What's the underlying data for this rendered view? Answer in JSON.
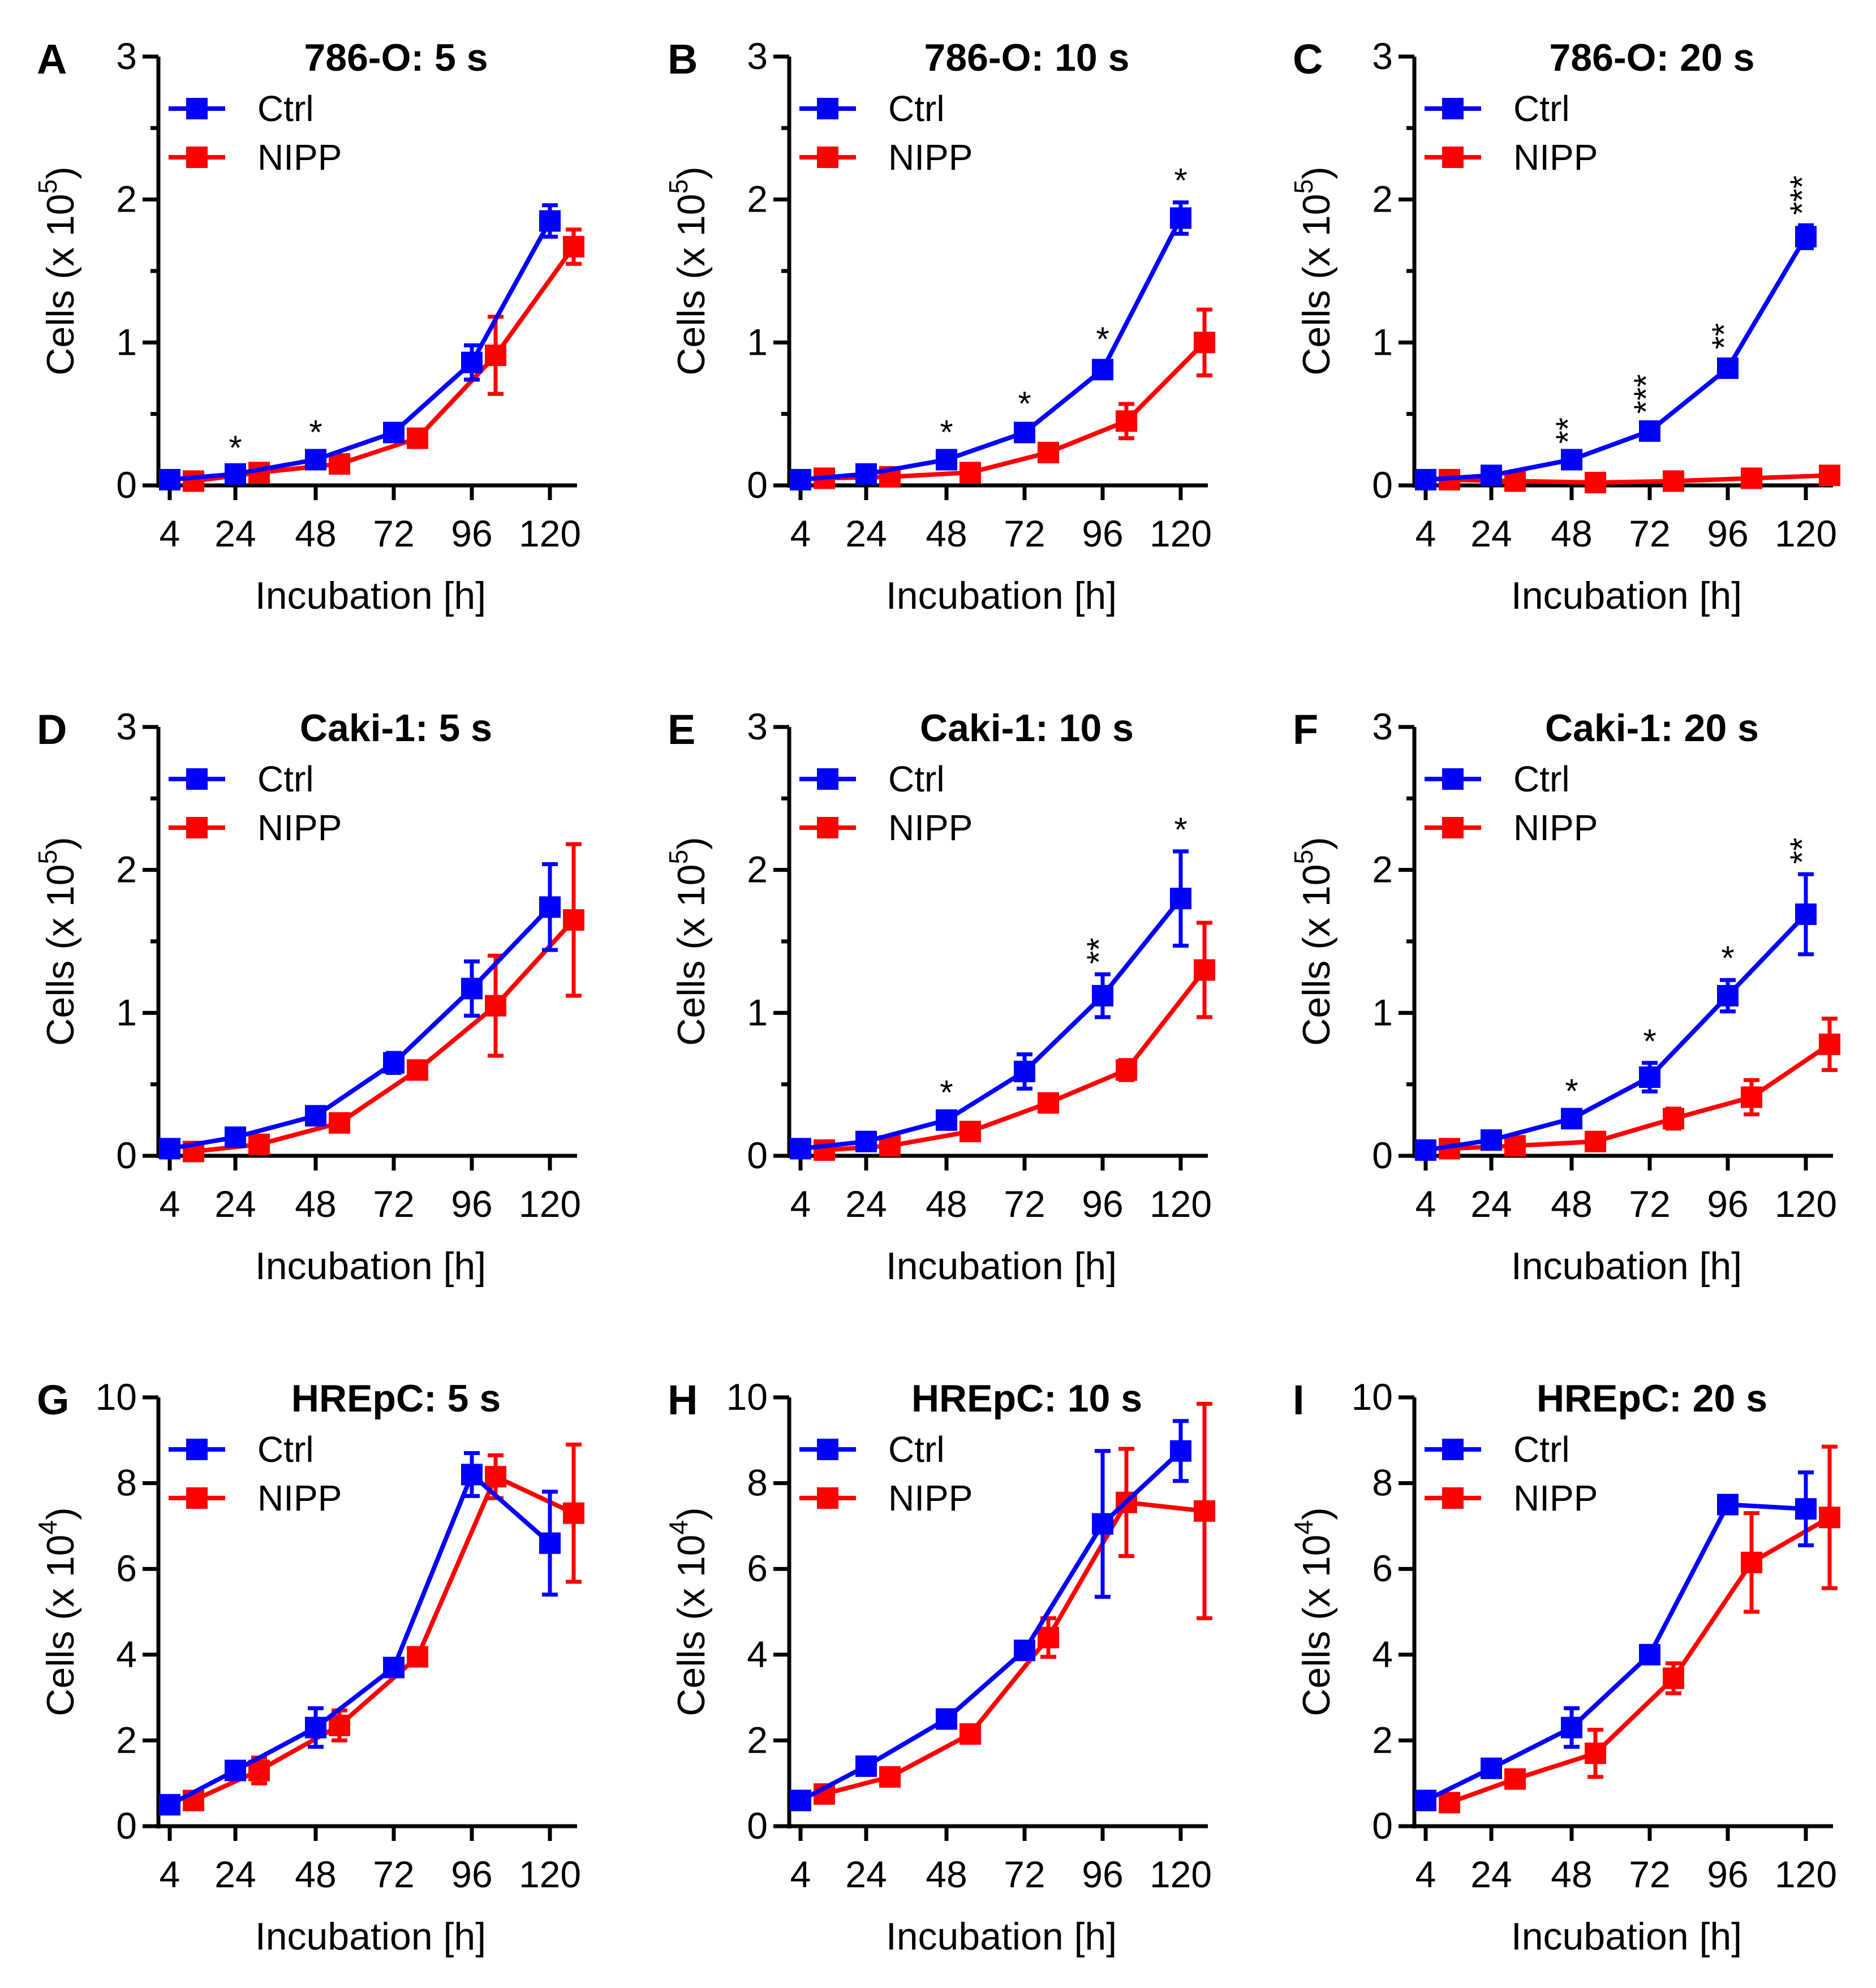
{
  "figure": {
    "xlabel": "Incubation [h]",
    "legend": [
      "Ctrl",
      "NIPP"
    ],
    "colors": {
      "Ctrl": "#0000ff",
      "NIPP": "#ff0000",
      "axis": "#000000"
    }
  },
  "chart_data": [
    {
      "type": "line",
      "panel": "A",
      "title": "786-O: 5 s",
      "xlabel": "Incubation [h]",
      "ylabel": "Cells (x 10",
      "ylabel_exp": "5",
      "ylabel_end": ")",
      "categories": [
        "4",
        "24",
        "48",
        "72",
        "96",
        "120"
      ],
      "ylim": [
        0,
        3
      ],
      "yticks": [
        "0",
        "1",
        "2",
        "3"
      ],
      "series": [
        {
          "name": "Ctrl",
          "values": [
            0.04,
            0.08,
            0.18,
            0.37,
            0.86,
            1.85
          ],
          "errors": [
            0.02,
            0.03,
            0.04,
            0.05,
            0.12,
            0.11
          ]
        },
        {
          "name": "NIPP",
          "values": [
            0.03,
            0.09,
            0.15,
            0.33,
            0.91,
            1.67
          ],
          "errors": [
            0.02,
            0.03,
            0.03,
            0.05,
            0.27,
            0.12
          ]
        }
      ],
      "annotations": [
        "",
        "*",
        "*",
        "",
        "",
        ""
      ]
    },
    {
      "type": "line",
      "panel": "B",
      "title": "786-O: 10 s",
      "xlabel": "Incubation [h]",
      "ylabel": "Cells (x 10",
      "ylabel_exp": "5",
      "ylabel_end": ")",
      "categories": [
        "4",
        "24",
        "48",
        "72",
        "96",
        "120"
      ],
      "ylim": [
        0,
        3
      ],
      "yticks": [
        "0",
        "1",
        "2",
        "3"
      ],
      "series": [
        {
          "name": "Ctrl",
          "values": [
            0.04,
            0.08,
            0.18,
            0.37,
            0.81,
            1.87
          ],
          "errors": [
            0.02,
            0.03,
            0.04,
            0.05,
            0.06,
            0.11
          ]
        },
        {
          "name": "NIPP",
          "values": [
            0.05,
            0.06,
            0.09,
            0.23,
            0.45,
            1.0
          ],
          "errors": [
            0.04,
            0.03,
            0.04,
            0.05,
            0.12,
            0.23
          ]
        }
      ],
      "annotations": [
        "",
        "",
        "*",
        "*",
        "*",
        "*"
      ]
    },
    {
      "type": "line",
      "panel": "C",
      "title": "786-O: 20 s",
      "xlabel": "Incubation [h]",
      "ylabel": "Cells (x 10",
      "ylabel_exp": "5",
      "ylabel_end": ")",
      "categories": [
        "4",
        "24",
        "48",
        "72",
        "96",
        "120"
      ],
      "ylim": [
        0,
        3
      ],
      "yticks": [
        "0",
        "1",
        "2",
        "3"
      ],
      "series": [
        {
          "name": "Ctrl",
          "values": [
            0.04,
            0.07,
            0.18,
            0.38,
            0.82,
            1.74
          ],
          "errors": [
            0.02,
            0.03,
            0.04,
            0.05,
            0.06,
            0.08
          ]
        },
        {
          "name": "NIPP",
          "values": [
            0.04,
            0.03,
            0.02,
            0.03,
            0.05,
            0.07
          ],
          "errors": [
            0.02,
            0.02,
            0.02,
            0.02,
            0.02,
            0.03
          ]
        }
      ],
      "annotations": [
        "",
        "",
        "**",
        "***",
        "**",
        "***"
      ]
    },
    {
      "type": "line",
      "panel": "D",
      "title": "Caki-1: 5 s",
      "xlabel": "Incubation [h]",
      "ylabel": "Cells (x 10",
      "ylabel_exp": "5",
      "ylabel_end": ")",
      "categories": [
        "4",
        "24",
        "48",
        "72",
        "96",
        "120"
      ],
      "ylim": [
        0,
        3
      ],
      "yticks": [
        "0",
        "1",
        "2",
        "3"
      ],
      "series": [
        {
          "name": "Ctrl",
          "values": [
            0.05,
            0.13,
            0.28,
            0.65,
            1.17,
            1.74
          ],
          "errors": [
            0.02,
            0.03,
            0.04,
            0.07,
            0.19,
            0.3
          ]
        },
        {
          "name": "NIPP",
          "values": [
            0.03,
            0.08,
            0.23,
            0.6,
            1.05,
            1.65
          ],
          "errors": [
            0.02,
            0.03,
            0.04,
            0.05,
            0.35,
            0.53
          ]
        }
      ],
      "annotations": [
        "",
        "",
        "",
        "",
        "",
        ""
      ]
    },
    {
      "type": "line",
      "panel": "E",
      "title": "Caki-1: 10 s",
      "xlabel": "Incubation [h]",
      "ylabel": "Cells (x 10",
      "ylabel_exp": "5",
      "ylabel_end": ")",
      "categories": [
        "4",
        "24",
        "48",
        "72",
        "96",
        "120"
      ],
      "ylim": [
        0,
        3
      ],
      "yticks": [
        "0",
        "1",
        "2",
        "3"
      ],
      "series": [
        {
          "name": "Ctrl",
          "values": [
            0.05,
            0.1,
            0.25,
            0.59,
            1.12,
            1.8
          ],
          "errors": [
            0.02,
            0.03,
            0.04,
            0.12,
            0.15,
            0.33
          ]
        },
        {
          "name": "NIPP",
          "values": [
            0.04,
            0.07,
            0.17,
            0.37,
            0.6,
            1.3
          ],
          "errors": [
            0.02,
            0.03,
            0.04,
            0.06,
            0.07,
            0.33
          ]
        }
      ],
      "annotations": [
        "",
        "",
        "*",
        "",
        "**",
        "*"
      ]
    },
    {
      "type": "line",
      "panel": "F",
      "title": "Caki-1: 20 s",
      "xlabel": "Incubation [h]",
      "ylabel": "Cells (x 10",
      "ylabel_exp": "5",
      "ylabel_end": ")",
      "categories": [
        "4",
        "24",
        "48",
        "72",
        "96",
        "120"
      ],
      "ylim": [
        0,
        3
      ],
      "yticks": [
        "0",
        "1",
        "2",
        "3"
      ],
      "series": [
        {
          "name": "Ctrl",
          "values": [
            0.04,
            0.11,
            0.26,
            0.55,
            1.12,
            1.69
          ],
          "errors": [
            0.02,
            0.03,
            0.04,
            0.1,
            0.11,
            0.28
          ]
        },
        {
          "name": "NIPP",
          "values": [
            0.05,
            0.07,
            0.1,
            0.26,
            0.41,
            0.78
          ],
          "errors": [
            0.02,
            0.03,
            0.04,
            0.07,
            0.12,
            0.18
          ]
        }
      ],
      "annotations": [
        "",
        "",
        "*",
        "*",
        "*",
        "**"
      ]
    },
    {
      "type": "line",
      "panel": "G",
      "title": "HREpC: 5 s",
      "xlabel": "Incubation [h]",
      "ylabel": "Cells (x 10",
      "ylabel_exp": "4",
      "ylabel_end": ")",
      "categories": [
        "4",
        "24",
        "48",
        "72",
        "96",
        "120"
      ],
      "ylim": [
        0,
        10
      ],
      "yticks": [
        "0",
        "2",
        "4",
        "6",
        "8",
        "10"
      ],
      "series": [
        {
          "name": "Ctrl",
          "values": [
            0.5,
            1.3,
            2.3,
            3.7,
            8.2,
            6.6
          ],
          "errors": [
            0.15,
            0.2,
            0.45,
            0.2,
            0.5,
            1.2
          ]
        },
        {
          "name": "NIPP",
          "values": [
            0.6,
            1.3,
            2.35,
            3.95,
            8.15,
            7.3
          ],
          "errors": [
            0.2,
            0.3,
            0.35,
            0.2,
            0.5,
            1.6
          ]
        }
      ],
      "annotations": [
        "",
        "",
        "",
        "",
        "",
        ""
      ]
    },
    {
      "type": "line",
      "panel": "H",
      "title": "HREpC: 10 s",
      "xlabel": "Incubation [h]",
      "ylabel": "Cells (x 10",
      "ylabel_exp": "4",
      "ylabel_end": ")",
      "categories": [
        "4",
        "24",
        "48",
        "72",
        "96",
        "120"
      ],
      "ylim": [
        0,
        10
      ],
      "yticks": [
        "0",
        "2",
        "4",
        "6",
        "8",
        "10"
      ],
      "series": [
        {
          "name": "Ctrl",
          "values": [
            0.6,
            1.4,
            2.5,
            4.1,
            7.05,
            8.75
          ],
          "errors": [
            0.2,
            0.15,
            0.15,
            0.2,
            1.7,
            0.7
          ]
        },
        {
          "name": "NIPP",
          "values": [
            0.75,
            1.15,
            2.15,
            4.4,
            7.55,
            7.35
          ],
          "errors": [
            0.2,
            0.15,
            0.2,
            0.45,
            1.25,
            2.5
          ]
        }
      ],
      "annotations": [
        "",
        "",
        "",
        "",
        "",
        ""
      ]
    },
    {
      "type": "line",
      "panel": "I",
      "title": "HREpC: 20 s",
      "xlabel": "Incubation [h]",
      "ylabel": "Cells (x 10",
      "ylabel_exp": "4",
      "ylabel_end": ")",
      "categories": [
        "4",
        "24",
        "48",
        "72",
        "96",
        "120"
      ],
      "ylim": [
        0,
        10
      ],
      "yticks": [
        "0",
        "2",
        "4",
        "6",
        "8",
        "10"
      ],
      "series": [
        {
          "name": "Ctrl",
          "values": [
            0.6,
            1.35,
            2.3,
            4.0,
            7.5,
            7.4
          ],
          "errors": [
            0.15,
            0.15,
            0.45,
            0.2,
            0.15,
            0.85
          ]
        },
        {
          "name": "NIPP",
          "values": [
            0.55,
            1.1,
            1.7,
            3.45,
            6.15,
            7.2
          ],
          "errors": [
            0.15,
            0.15,
            0.55,
            0.35,
            1.15,
            1.65
          ]
        }
      ],
      "annotations": [
        "",
        "",
        "",
        "",
        "",
        ""
      ]
    }
  ]
}
